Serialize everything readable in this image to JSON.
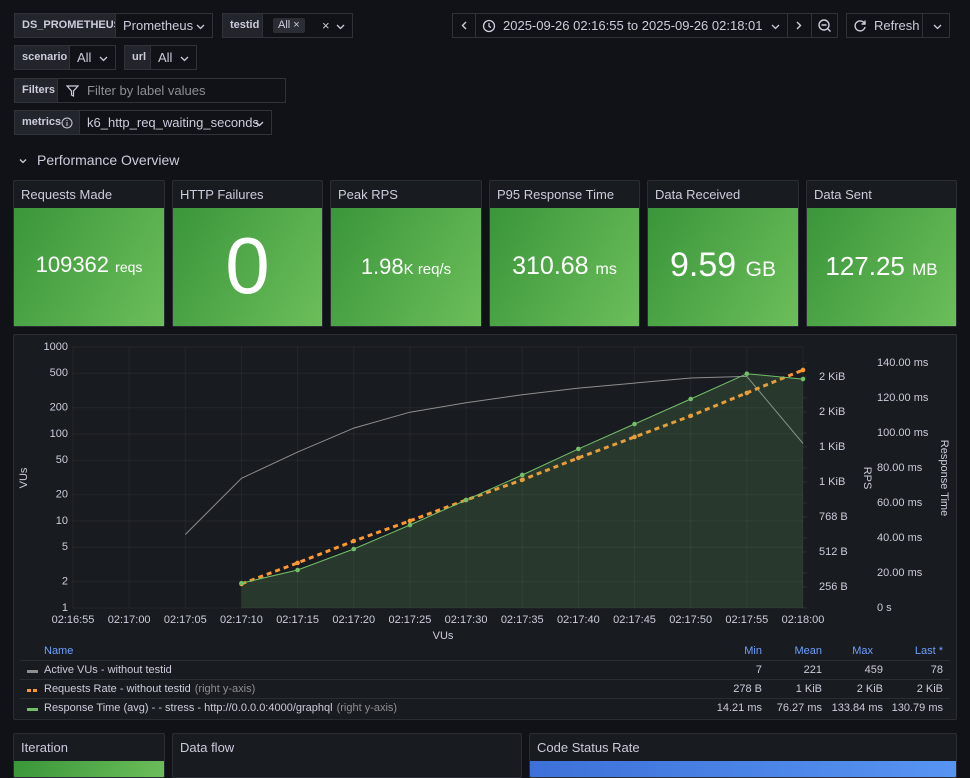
{
  "toolbar": {
    "variables": [
      {
        "label": "DS_PROMETHEUS",
        "value": "Prometheus"
      },
      {
        "label": "testid",
        "value": "All"
      },
      {
        "label": "scenario",
        "value": "All"
      },
      {
        "label": "url",
        "value": "All"
      }
    ],
    "filters": {
      "label": "Filters",
      "placeholder": "Filter by label values"
    },
    "metrics": {
      "label": "metrics",
      "value": "k6_http_req_waiting_seconds"
    },
    "time_range": "2025-09-26 02:16:55 to 2025-09-26 02:18:01",
    "refresh": "Refresh"
  },
  "row_title": "Performance Overview",
  "stats": [
    {
      "title": "Requests Made",
      "value": 109362,
      "unit": "reqs"
    },
    {
      "title": "HTTP Failures",
      "value": 0
    },
    {
      "title": "Peak RPS",
      "value": 1.98,
      "unit": "K req/s"
    },
    {
      "title": "P95 Response Time",
      "value": 310.68,
      "unit": "ms"
    },
    {
      "title": "Data Received",
      "value": 9.59,
      "unit": "GB"
    },
    {
      "title": "Data Sent",
      "value": 127.25,
      "unit": "MB"
    }
  ],
  "timeseries": {
    "type": "line",
    "xlabel": "VUs",
    "ylabel": "VUs",
    "y2label": "RPS",
    "y3label": "Response Time",
    "xlim": [
      "02:16:55",
      "02:18:00"
    ],
    "xticks": [
      "02:16:55",
      "02:17:00",
      "02:17:05",
      "02:17:10",
      "02:17:15",
      "02:17:20",
      "02:17:25",
      "02:17:30",
      "02:17:35",
      "02:17:40",
      "02:17:45",
      "02:17:50",
      "02:17:55",
      "02:18:00"
    ],
    "yscale": "log",
    "ylim": [
      1,
      1000
    ],
    "yticks": [
      1,
      2,
      5,
      10,
      20,
      50,
      100,
      200,
      500,
      1000
    ],
    "y2lim": [
      102,
      2011
    ],
    "y2ticks": [
      {
        "value": 256,
        "label": "256 B"
      },
      {
        "value": 512,
        "label": "512 B"
      },
      {
        "value": 768,
        "label": "768 B"
      },
      {
        "value": 1024,
        "label": "1 KiB"
      },
      {
        "value": 1280,
        "label": "1 KiB"
      },
      {
        "value": 1536,
        "label": "2 KiB"
      },
      {
        "value": 1792,
        "label": "2 KiB"
      }
    ],
    "y3lim": [
      0,
      149.1
    ],
    "y3ticks": [
      {
        "value": 0,
        "label": "0 s"
      },
      {
        "value": 20,
        "label": "20.00 ms"
      },
      {
        "value": 40,
        "label": "40.00 ms"
      },
      {
        "value": 60,
        "label": "60.00 ms"
      },
      {
        "value": 80,
        "label": "80.00 ms"
      },
      {
        "value": 100,
        "label": "100.00 ms"
      },
      {
        "value": 120,
        "label": "120.00 ms"
      },
      {
        "value": 140,
        "label": "140.00 ms"
      }
    ],
    "x": [
      "02:17:05",
      "02:17:10",
      "02:17:15",
      "02:17:20",
      "02:17:25",
      "02:17:30",
      "02:17:35",
      "02:17:40",
      "02:17:45",
      "02:17:50",
      "02:17:55",
      "02:18:00"
    ],
    "series": [
      {
        "name": "Active VUs - without testid",
        "color": "#8e8e8e",
        "values": [
          7,
          31,
          62,
          117,
          178,
          229,
          282,
          337,
          385,
          440,
          459,
          78
        ]
      },
      {
        "name": "Requests Rate - without testid",
        "color": "#ff9830",
        "axis": "y2",
        "dashed": true,
        "points": true,
        "values": [
          null,
          278,
          432,
          592,
          739,
          892,
          1039,
          1200,
          1353,
          1507,
          1675,
          1843
        ]
      },
      {
        "name": "Response Time (avg) - - stress - http://0.0.0.0:4000/graphql",
        "color": "#73bf69",
        "axis": "y3",
        "fill": true,
        "points": true,
        "values": [
          null,
          14.21,
          21.7,
          33.7,
          47.4,
          61.7,
          76.0,
          90.9,
          105.1,
          119.4,
          133.84,
          130.79
        ]
      }
    ]
  },
  "legend": {
    "headers": [
      "Name",
      "Min",
      "Mean",
      "Max",
      "Last *"
    ],
    "rows": [
      {
        "min": 7,
        "mean": 221,
        "max": 459,
        "last": 78
      },
      {
        "note": "(right y-axis)",
        "min": "278 B",
        "mean": "1 KiB",
        "max": "2 KiB",
        "last": "2 KiB"
      },
      {
        "note": "(right y-axis)",
        "min": "14.21 ms",
        "mean": "76.27 ms",
        "max": "133.84 ms",
        "last": "130.79 ms"
      }
    ]
  },
  "bottom_panels": [
    "Iteration",
    "Data flow",
    "Code Status Rate"
  ]
}
